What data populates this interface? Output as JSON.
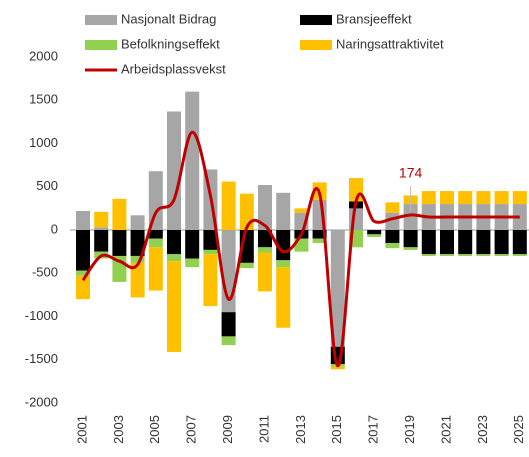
{
  "chart_data": {
    "type": "bar",
    "categories": [
      "2001",
      "2002",
      "2003",
      "2004",
      "2005",
      "2006",
      "2007",
      "2008",
      "2009",
      "2010",
      "2011",
      "2012",
      "2013",
      "2014",
      "2015",
      "2016",
      "2017",
      "2018",
      "2019",
      "2020",
      "2021",
      "2022",
      "2023",
      "2024",
      "2025"
    ],
    "x_labels": [
      "2001",
      "2003",
      "2005",
      "2007",
      "2009",
      "2011",
      "2013",
      "2015",
      "2017",
      "2019",
      "2021",
      "2023",
      "2025"
    ],
    "series": [
      {
        "name": "Nasjonalt Bidrag",
        "color": "#a6a6a6",
        "values": [
          220,
          30,
          0,
          170,
          680,
          1370,
          1600,
          700,
          -950,
          0,
          520,
          430,
          200,
          350,
          -1350,
          250,
          0,
          200,
          300,
          300,
          300,
          300,
          300,
          300,
          300
        ]
      },
      {
        "name": "Bransjeeffekt",
        "color": "#000000",
        "values": [
          -470,
          -250,
          -300,
          -300,
          -100,
          -280,
          -330,
          -230,
          -280,
          -380,
          -200,
          -350,
          -100,
          -100,
          -200,
          80,
          -50,
          -150,
          -200,
          -280,
          -280,
          -280,
          -280,
          -280,
          -280
        ]
      },
      {
        "name": "Befolkningseffekt",
        "color": "#92d050",
        "values": [
          -60,
          -80,
          -300,
          -80,
          -100,
          -80,
          -100,
          -50,
          -100,
          -60,
          -60,
          -80,
          -150,
          -50,
          -30,
          -200,
          -30,
          -60,
          -30,
          -20,
          -20,
          -20,
          -20,
          -20,
          -20
        ]
      },
      {
        "name": "Naringsattraktivitet",
        "color": "#ffc000",
        "values": [
          -270,
          180,
          360,
          -400,
          -500,
          -1050,
          0,
          -600,
          560,
          420,
          -450,
          -700,
          50,
          200,
          -30,
          270,
          0,
          120,
          100,
          150,
          150,
          150,
          150,
          150,
          150
        ]
      },
      {
        "name": "Arbeidsplassvekst",
        "color": "#c00000",
        "kind": "line",
        "values": [
          -580,
          -300,
          -360,
          -400,
          200,
          350,
          1130,
          400,
          -800,
          30,
          50,
          -250,
          -50,
          420,
          -1570,
          330,
          100,
          130,
          174,
          150,
          150,
          150,
          150,
          150,
          150
        ],
        "value_labels": [
          null,
          null,
          null,
          null,
          null,
          null,
          null,
          null,
          null,
          null,
          null,
          null,
          null,
          null,
          null,
          null,
          null,
          null,
          "174",
          null,
          null,
          null,
          null,
          null,
          null
        ]
      }
    ],
    "ylim": [
      -2000,
      2000
    ],
    "yticks": [
      -2000,
      -1500,
      -1000,
      -500,
      0,
      500,
      1000,
      1500,
      2000
    ]
  }
}
